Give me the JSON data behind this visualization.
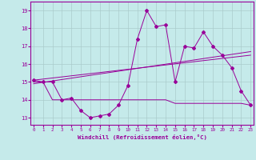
{
  "xlabel": "Windchill (Refroidissement éolien,°C)",
  "background_color": "#c5eaea",
  "grid_color": "#aacccc",
  "line_color": "#990099",
  "x_ticks": [
    0,
    1,
    2,
    3,
    4,
    5,
    6,
    7,
    8,
    9,
    10,
    11,
    12,
    13,
    14,
    15,
    16,
    17,
    18,
    19,
    20,
    21,
    22,
    23
  ],
  "y_ticks": [
    13,
    14,
    15,
    16,
    17,
    18,
    19
  ],
  "ylim": [
    12.6,
    19.5
  ],
  "xlim": [
    -0.3,
    23.3
  ],
  "series1": [
    15.1,
    15.0,
    15.0,
    14.0,
    14.1,
    13.4,
    13.0,
    13.1,
    13.2,
    13.7,
    14.8,
    17.4,
    19.0,
    18.1,
    18.2,
    15.0,
    17.0,
    16.9,
    17.8,
    17.0,
    16.5,
    15.8,
    14.5,
    13.7
  ],
  "series2": [
    15.0,
    15.0,
    14.0,
    14.0,
    14.0,
    14.0,
    14.0,
    14.0,
    14.0,
    14.0,
    14.0,
    14.0,
    14.0,
    14.0,
    14.0,
    13.8,
    13.8,
    13.8,
    13.8,
    13.8,
    13.8,
    13.8,
    13.8,
    13.7
  ],
  "series3_x": [
    0,
    23
  ],
  "series3_y": [
    14.9,
    16.7
  ],
  "series4_x": [
    0,
    23
  ],
  "series4_y": [
    15.1,
    16.5
  ]
}
